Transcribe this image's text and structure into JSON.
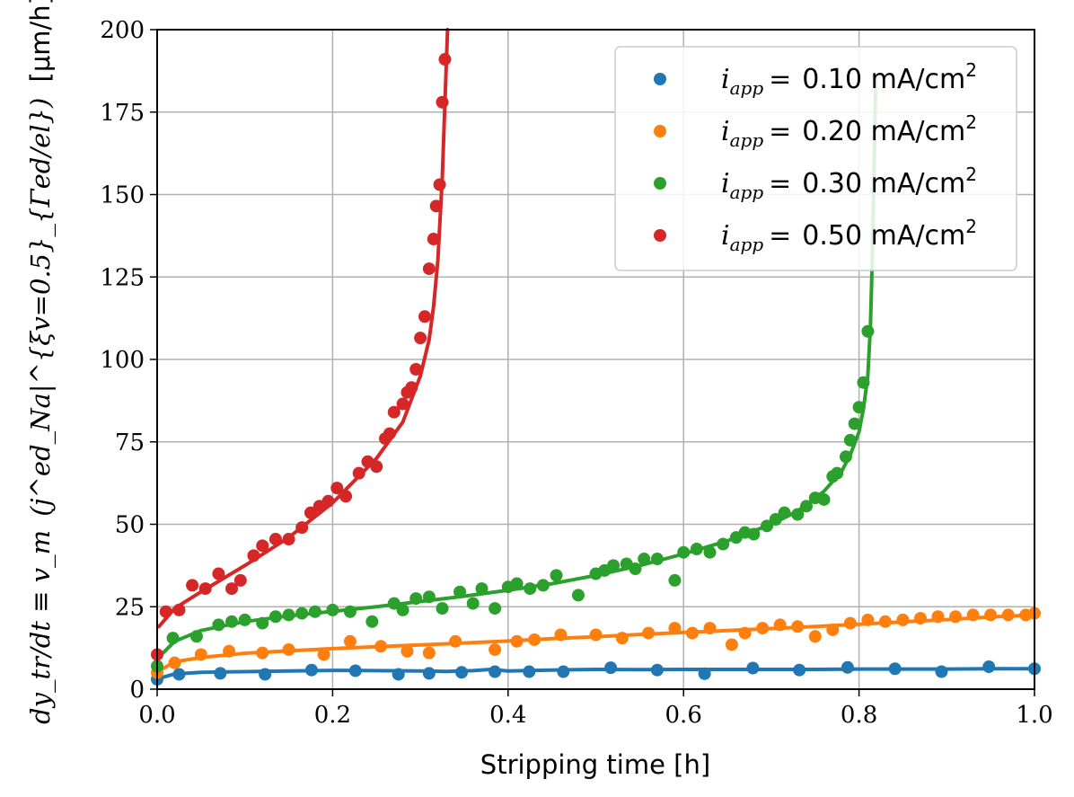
{
  "chart_data": {
    "type": "scatter",
    "title": "",
    "xlabel": "Stripping time [h]",
    "ylabel": {
      "main": "dy_tr/dt ≡ v_m",
      "term": "(j^ed_Na|^{ξv=0.5}_{Γed/el})",
      "unit": "[μm/h]"
    },
    "xlim": [
      0.0,
      1.0
    ],
    "ylim": [
      0,
      200
    ],
    "xticks": [
      0.0,
      0.2,
      0.4,
      0.6,
      0.8,
      1.0
    ],
    "xtick_labels": [
      "0.0",
      "0.2",
      "0.4",
      "0.6",
      "0.8",
      "1.0"
    ],
    "yticks": [
      0,
      25,
      50,
      75,
      100,
      125,
      150,
      175,
      200
    ],
    "ytick_labels": [
      "0",
      "25",
      "50",
      "75",
      "100",
      "125",
      "150",
      "175",
      "200"
    ],
    "grid": true,
    "legend_position": "top-right",
    "series": [
      {
        "name": "0.10 mA/cm2",
        "label_symbol": "i",
        "label_sub": "app",
        "label_value": "0.10 mA/cm",
        "label_sup": "2",
        "color": "#1f77b4",
        "points": [
          [
            0.0,
            3.0
          ],
          [
            0.025,
            4.5
          ],
          [
            0.072,
            4.8
          ],
          [
            0.123,
            4.5
          ],
          [
            0.176,
            5.8
          ],
          [
            0.226,
            5.6
          ],
          [
            0.275,
            4.5
          ],
          [
            0.31,
            4.8
          ],
          [
            0.347,
            5.1
          ],
          [
            0.385,
            5.3
          ],
          [
            0.424,
            5.3
          ],
          [
            0.463,
            5.3
          ],
          [
            0.517,
            6.5
          ],
          [
            0.57,
            5.8
          ],
          [
            0.624,
            4.7
          ],
          [
            0.679,
            6.4
          ],
          [
            0.732,
            5.8
          ],
          [
            0.787,
            6.6
          ],
          [
            0.841,
            6.2
          ],
          [
            0.894,
            5.3
          ],
          [
            0.948,
            6.8
          ],
          [
            1.0,
            6.2
          ]
        ],
        "fit": [
          [
            0.002,
            3.3
          ],
          [
            0.02,
            4.6
          ],
          [
            0.05,
            5.1
          ],
          [
            0.1,
            5.3
          ],
          [
            0.15,
            5.5
          ],
          [
            0.2,
            5.7
          ],
          [
            0.25,
            5.6
          ],
          [
            0.3,
            5.5
          ],
          [
            0.33,
            5.4
          ],
          [
            0.36,
            5.6
          ],
          [
            0.38,
            6.0
          ],
          [
            0.4,
            5.5
          ],
          [
            0.45,
            5.8
          ],
          [
            0.5,
            6.0
          ],
          [
            0.55,
            5.9
          ],
          [
            0.6,
            6.0
          ],
          [
            0.65,
            6.0
          ],
          [
            0.7,
            6.0
          ],
          [
            0.75,
            6.0
          ],
          [
            0.8,
            6.1
          ],
          [
            0.85,
            6.1
          ],
          [
            0.9,
            6.1
          ],
          [
            0.95,
            6.2
          ],
          [
            1.0,
            6.2
          ]
        ]
      },
      {
        "name": "0.20 mA/cm2",
        "label_symbol": "i",
        "label_sub": "app",
        "label_value": "0.20 mA/cm",
        "label_sup": "2",
        "color": "#ff7f0e",
        "points": [
          [
            0.0,
            5.0
          ],
          [
            0.02,
            8.0
          ],
          [
            0.05,
            10.5
          ],
          [
            0.082,
            11.5
          ],
          [
            0.12,
            11.0
          ],
          [
            0.15,
            12.0
          ],
          [
            0.19,
            10.5
          ],
          [
            0.22,
            14.5
          ],
          [
            0.255,
            13.0
          ],
          [
            0.285,
            11.5
          ],
          [
            0.31,
            11.0
          ],
          [
            0.34,
            14.5
          ],
          [
            0.385,
            12.0
          ],
          [
            0.41,
            14.5
          ],
          [
            0.43,
            15.0
          ],
          [
            0.46,
            16.5
          ],
          [
            0.5,
            16.5
          ],
          [
            0.53,
            15.5
          ],
          [
            0.56,
            17.0
          ],
          [
            0.59,
            18.5
          ],
          [
            0.61,
            17.0
          ],
          [
            0.63,
            18.5
          ],
          [
            0.655,
            13.5
          ],
          [
            0.67,
            17.0
          ],
          [
            0.69,
            18.5
          ],
          [
            0.71,
            19.5
          ],
          [
            0.73,
            19.0
          ],
          [
            0.75,
            16.0
          ],
          [
            0.77,
            18.0
          ],
          [
            0.79,
            20.0
          ],
          [
            0.81,
            21.0
          ],
          [
            0.83,
            20.5
          ],
          [
            0.85,
            21.0
          ],
          [
            0.87,
            21.5
          ],
          [
            0.89,
            22.0
          ],
          [
            0.91,
            22.0
          ],
          [
            0.93,
            22.5
          ],
          [
            0.95,
            22.5
          ],
          [
            0.97,
            22.5
          ],
          [
            0.99,
            22.5
          ],
          [
            1.0,
            23.0
          ]
        ],
        "fit": [
          [
            0.002,
            5.5
          ],
          [
            0.02,
            8.3
          ],
          [
            0.05,
            9.6
          ],
          [
            0.1,
            10.9
          ],
          [
            0.15,
            11.6
          ],
          [
            0.2,
            12.3
          ],
          [
            0.25,
            12.9
          ],
          [
            0.3,
            13.4
          ],
          [
            0.35,
            14.0
          ],
          [
            0.4,
            14.6
          ],
          [
            0.45,
            15.3
          ],
          [
            0.5,
            15.9
          ],
          [
            0.55,
            16.6
          ],
          [
            0.6,
            17.2
          ],
          [
            0.65,
            17.8
          ],
          [
            0.7,
            18.4
          ],
          [
            0.75,
            19.0
          ],
          [
            0.8,
            19.7
          ],
          [
            0.85,
            20.4
          ],
          [
            0.9,
            21.1
          ],
          [
            0.95,
            21.9
          ],
          [
            1.0,
            22.5
          ]
        ]
      },
      {
        "name": "0.30 mA/cm2",
        "label_symbol": "i",
        "label_sub": "app",
        "label_value": "0.30 mA/cm",
        "label_sup": "2",
        "color": "#2ca02c",
        "points": [
          [
            0.0,
            7.0
          ],
          [
            0.018,
            15.5
          ],
          [
            0.045,
            16.0
          ],
          [
            0.07,
            19.5
          ],
          [
            0.085,
            20.5
          ],
          [
            0.1,
            21.0
          ],
          [
            0.12,
            20.0
          ],
          [
            0.135,
            22.0
          ],
          [
            0.15,
            22.5
          ],
          [
            0.165,
            23.0
          ],
          [
            0.18,
            23.5
          ],
          [
            0.2,
            24.0
          ],
          [
            0.22,
            23.5
          ],
          [
            0.245,
            20.5
          ],
          [
            0.27,
            26.0
          ],
          [
            0.28,
            24.0
          ],
          [
            0.295,
            27.5
          ],
          [
            0.31,
            28.0
          ],
          [
            0.325,
            24.5
          ],
          [
            0.345,
            29.5
          ],
          [
            0.36,
            26.0
          ],
          [
            0.37,
            30.5
          ],
          [
            0.385,
            24.5
          ],
          [
            0.4,
            31.0
          ],
          [
            0.41,
            32.0
          ],
          [
            0.425,
            30.5
          ],
          [
            0.44,
            31.5
          ],
          [
            0.455,
            34.5
          ],
          [
            0.48,
            28.5
          ],
          [
            0.5,
            35.0
          ],
          [
            0.51,
            36.0
          ],
          [
            0.52,
            37.5
          ],
          [
            0.535,
            38.0
          ],
          [
            0.545,
            36.5
          ],
          [
            0.555,
            39.5
          ],
          [
            0.57,
            39.5
          ],
          [
            0.59,
            33.0
          ],
          [
            0.6,
            41.5
          ],
          [
            0.615,
            42.5
          ],
          [
            0.63,
            41.5
          ],
          [
            0.645,
            44.0
          ],
          [
            0.66,
            46.0
          ],
          [
            0.67,
            47.5
          ],
          [
            0.68,
            47.0
          ],
          [
            0.695,
            49.5
          ],
          [
            0.705,
            51.5
          ],
          [
            0.715,
            53.5
          ],
          [
            0.73,
            53.0
          ],
          [
            0.74,
            55.5
          ],
          [
            0.75,
            58.0
          ],
          [
            0.76,
            57.5
          ],
          [
            0.77,
            64.5
          ],
          [
            0.775,
            65.5
          ],
          [
            0.785,
            70.5
          ],
          [
            0.79,
            75.5
          ],
          [
            0.795,
            80.5
          ],
          [
            0.8,
            85.5
          ],
          [
            0.805,
            93.0
          ],
          [
            0.81,
            108.5
          ]
        ],
        "fit": [
          [
            0.003,
            10.0
          ],
          [
            0.02,
            14.5
          ],
          [
            0.05,
            17.8
          ],
          [
            0.1,
            20.5
          ],
          [
            0.15,
            22.2
          ],
          [
            0.2,
            23.6
          ],
          [
            0.25,
            25.0
          ],
          [
            0.3,
            26.6
          ],
          [
            0.35,
            28.2
          ],
          [
            0.4,
            30.0
          ],
          [
            0.45,
            32.0
          ],
          [
            0.5,
            34.5
          ],
          [
            0.55,
            37.5
          ],
          [
            0.6,
            41.0
          ],
          [
            0.65,
            45.0
          ],
          [
            0.7,
            50.0
          ],
          [
            0.73,
            54.0
          ],
          [
            0.76,
            60.0
          ],
          [
            0.78,
            66.0
          ],
          [
            0.79,
            71.0
          ],
          [
            0.8,
            78.0
          ],
          [
            0.805,
            85.0
          ],
          [
            0.81,
            95.0
          ],
          [
            0.813,
            110.0
          ],
          [
            0.815,
            130.0
          ],
          [
            0.817,
            155.0
          ],
          [
            0.819,
            185.0
          ]
        ]
      },
      {
        "name": "0.50 mA/cm2",
        "label_symbol": "i",
        "label_sub": "app",
        "label_value": "0.50 mA/cm",
        "label_sup": "2",
        "color": "#d62728",
        "points": [
          [
            0.0,
            10.5
          ],
          [
            0.01,
            23.5
          ],
          [
            0.025,
            24.0
          ],
          [
            0.04,
            31.5
          ],
          [
            0.055,
            30.5
          ],
          [
            0.07,
            35.0
          ],
          [
            0.085,
            30.5
          ],
          [
            0.095,
            33.0
          ],
          [
            0.11,
            40.5
          ],
          [
            0.12,
            43.5
          ],
          [
            0.135,
            45.5
          ],
          [
            0.15,
            45.5
          ],
          [
            0.165,
            49.0
          ],
          [
            0.175,
            53.5
          ],
          [
            0.185,
            55.5
          ],
          [
            0.195,
            57.0
          ],
          [
            0.205,
            61.0
          ],
          [
            0.215,
            58.5
          ],
          [
            0.23,
            65.5
          ],
          [
            0.24,
            69.0
          ],
          [
            0.25,
            67.5
          ],
          [
            0.26,
            76.0
          ],
          [
            0.265,
            77.5
          ],
          [
            0.27,
            84.0
          ],
          [
            0.28,
            86.5
          ],
          [
            0.285,
            90.0
          ],
          [
            0.29,
            91.5
          ],
          [
            0.295,
            97.0
          ],
          [
            0.3,
            106.5
          ],
          [
            0.305,
            113.0
          ],
          [
            0.31,
            127.5
          ],
          [
            0.315,
            136.5
          ],
          [
            0.318,
            146.5
          ],
          [
            0.322,
            153.0
          ],
          [
            0.325,
            178.0
          ],
          [
            0.328,
            191.0
          ]
        ],
        "fit": [
          [
            0.002,
            19.0
          ],
          [
            0.02,
            24.5
          ],
          [
            0.05,
            29.5
          ],
          [
            0.1,
            37.5
          ],
          [
            0.15,
            46.0
          ],
          [
            0.2,
            56.5
          ],
          [
            0.25,
            70.0
          ],
          [
            0.28,
            81.0
          ],
          [
            0.3,
            95.0
          ],
          [
            0.31,
            106.0
          ],
          [
            0.315,
            116.0
          ],
          [
            0.32,
            130.0
          ],
          [
            0.325,
            155.0
          ],
          [
            0.328,
            178.0
          ],
          [
            0.331,
            200.0
          ]
        ]
      }
    ]
  }
}
